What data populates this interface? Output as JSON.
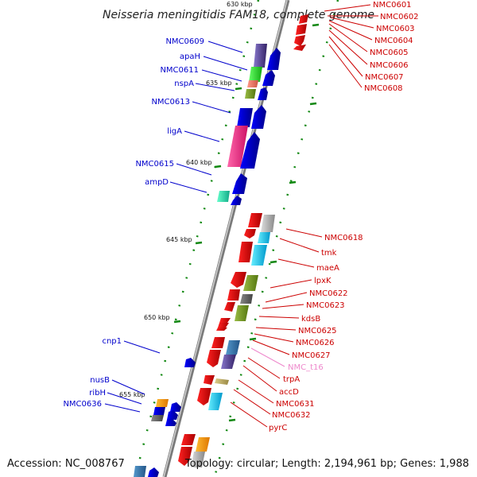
{
  "title": "Neisseria meningitidis FAM18, complete genome",
  "footer": {
    "accession": "Accession: NC_008767",
    "topology": "Topology: circular; Length: 2,194,961 bp; Genes: 1,988"
  },
  "scale_labels": [
    "630 kbp",
    "635 kbp",
    "640 kbp",
    "645 kbp",
    "650 kbp",
    "655 kbp"
  ],
  "left_genes": [
    "NMC0609",
    "apaH",
    "NMC0611",
    "nspA",
    "NMC0613",
    "ligA",
    "NMC0615",
    "ampD",
    "cnp1",
    "nusB",
    "ribH",
    "NMC0636"
  ],
  "right_genes": [
    "NMC0601",
    "NMC0602",
    "NMC0603",
    "NMC0604",
    "NMC0605",
    "NMC0606",
    "NMC0607",
    "NMC0608",
    "NMC0618",
    "tmk",
    "maeA",
    "lpxK",
    "NMC0622",
    "NMC0623",
    "kdsB",
    "NMC0625",
    "NMC0626",
    "NMC0627",
    "NMC_t16",
    "trpA",
    "accD",
    "NMC0631",
    "NMC0632",
    "pyrC"
  ],
  "colors": {
    "forward": "#0000dd",
    "reverse": "#ee0000",
    "tick": "#118811",
    "backbone": "#999999"
  }
}
